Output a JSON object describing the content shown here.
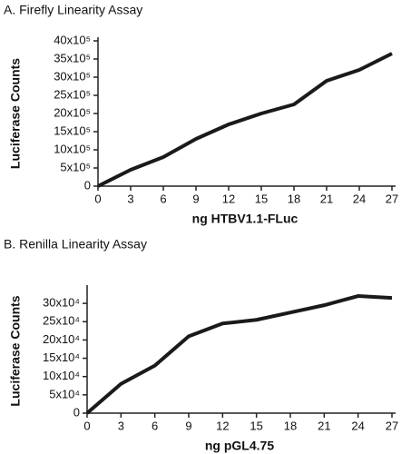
{
  "chart_data": [
    {
      "type": "line",
      "title": "A. Firefly Linearity Assay",
      "xlabel": "ng HTBV1.1-FLuc",
      "ylabel": "Luciferase Counts",
      "x": [
        0,
        3,
        6,
        9,
        12,
        15,
        18,
        21,
        24,
        27
      ],
      "series": [
        {
          "color": "#1a1a1a",
          "values": [
            0,
            450000,
            800000,
            1300000,
            1700000,
            2000000,
            2250000,
            2900000,
            3200000,
            3650000
          ]
        }
      ],
      "xlim": [
        0,
        27
      ],
      "xticks": [
        0,
        3,
        6,
        9,
        12,
        15,
        18,
        21,
        24,
        27
      ],
      "ylim": [
        0,
        4000000
      ],
      "yticks": [
        0,
        {
          "value": 500000,
          "label": "5x10⁵"
        },
        {
          "value": 1000000,
          "label": "10x10⁵"
        },
        {
          "value": 1500000,
          "label": "15x10⁵"
        },
        {
          "value": 2000000,
          "label": "20x10⁵"
        },
        {
          "value": 2500000,
          "label": "25x10⁵"
        },
        {
          "value": 3000000,
          "label": "30x10⁵"
        },
        {
          "value": 3500000,
          "label": "35x10⁵"
        },
        {
          "value": 4000000,
          "label": "40x10⁵"
        }
      ]
    },
    {
      "type": "line",
      "title": "B. Renilla Linearity Assay",
      "xlabel": "ng pGL4.75",
      "ylabel": "Luciferase Counts",
      "x": [
        0,
        3,
        6,
        9,
        12,
        15,
        18,
        21,
        24,
        27
      ],
      "series": [
        {
          "color": "#1a1a1a",
          "values": [
            0,
            80000,
            130000,
            210000,
            245000,
            255000,
            275000,
            295000,
            320000,
            315000
          ]
        }
      ],
      "xlim": [
        0,
        27
      ],
      "xticks": [
        0,
        3,
        6,
        9,
        12,
        15,
        18,
        21,
        24,
        27
      ],
      "ylim": [
        0,
        340000
      ],
      "yticks": [
        0,
        {
          "value": 50000,
          "label": "5x10⁴"
        },
        {
          "value": 100000,
          "label": "10x10⁴"
        },
        {
          "value": 150000,
          "label": "15x10⁴"
        },
        {
          "value": 200000,
          "label": "20x10⁴"
        },
        {
          "value": 250000,
          "label": "25x10⁴"
        },
        {
          "value": 300000,
          "label": "30x10⁴"
        }
      ]
    }
  ]
}
